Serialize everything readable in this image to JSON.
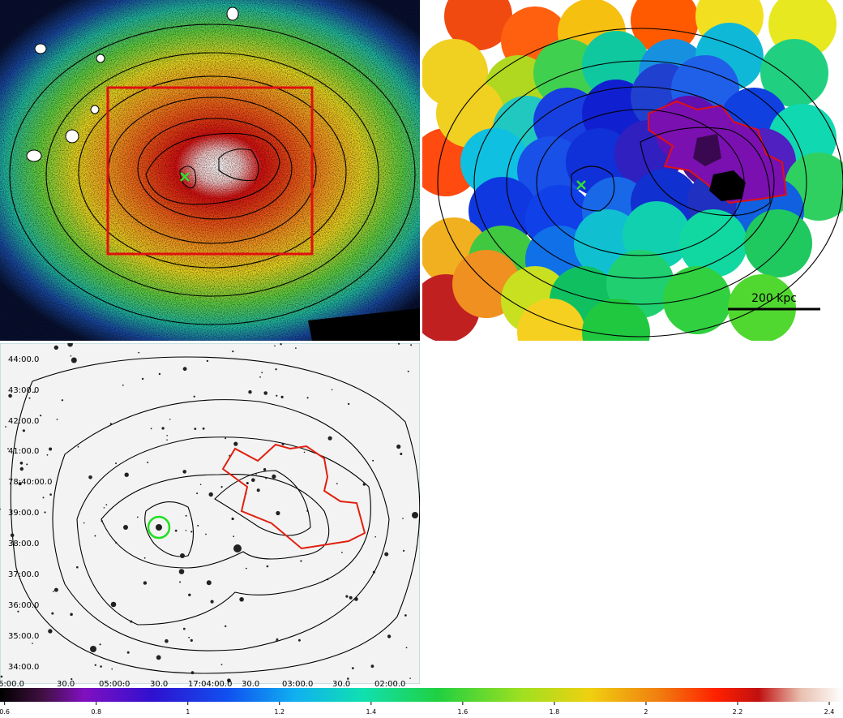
{
  "top_right": {
    "scale_bar": "200 kpc"
  },
  "bottom_left": {
    "dec_labels": [
      "44:00.0",
      "43:00.0",
      "42:00.0",
      "41:00.0",
      "78:40:00.0",
      "39:00.0",
      "38:00.0",
      "37:00.0",
      "36:00.0",
      "35:00.0",
      "34:00.0"
    ],
    "ra_labels": [
      "6:00.0",
      "30.0",
      "05:00.0",
      "30.0",
      "17:04:00.0",
      "30.0",
      "03:00.0",
      "30.0",
      "02:00.0"
    ]
  },
  "colorbar": {
    "lim": [
      0.59,
      2.43
    ],
    "ticks": [
      0.6,
      0.8,
      1,
      1.2,
      1.4,
      1.6,
      1.8,
      2,
      2.2,
      2.4
    ]
  }
}
